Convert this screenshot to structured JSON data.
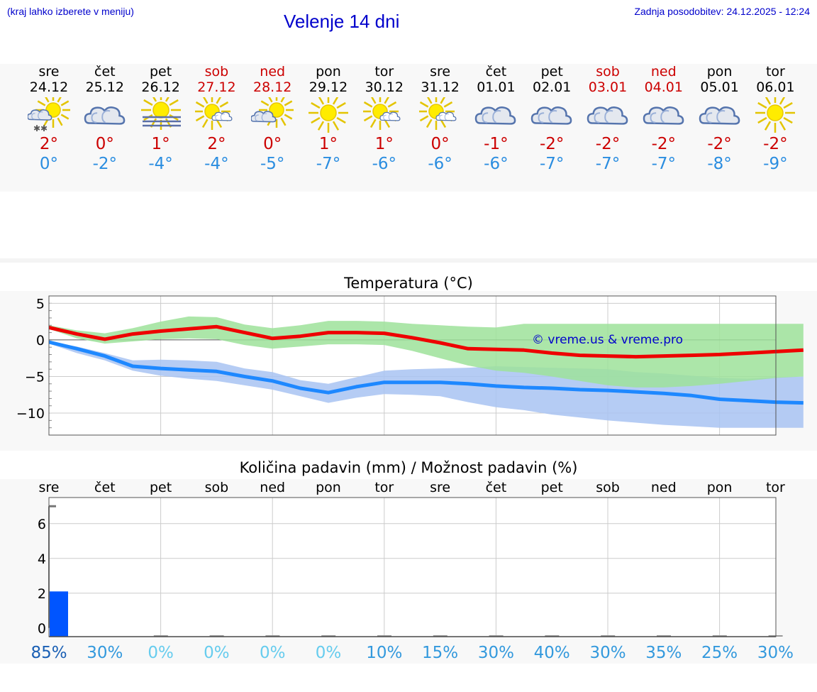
{
  "header": {
    "hint": "(kraj lahko izberete v meniju)",
    "title": "Velenje 14 dni",
    "updated": "Zadnja posodobitev: 24.12.2025 - 12:24"
  },
  "days": [
    {
      "name": "sre",
      "date": "24.12",
      "weekend": false,
      "icon": "partly-cloudy-snow-icon",
      "max": "2°",
      "min": "0°"
    },
    {
      "name": "čet",
      "date": "25.12",
      "weekend": false,
      "icon": "cloudy-icon",
      "max": "0°",
      "min": "-2°"
    },
    {
      "name": "pet",
      "date": "26.12",
      "weekend": false,
      "icon": "sun-fog-icon",
      "max": "1°",
      "min": "-4°"
    },
    {
      "name": "sob",
      "date": "27.12",
      "weekend": true,
      "icon": "sun-small-cloud-icon",
      "max": "2°",
      "min": "-4°"
    },
    {
      "name": "ned",
      "date": "28.12",
      "weekend": true,
      "icon": "sun-cloud-icon",
      "max": "0°",
      "min": "-5°"
    },
    {
      "name": "pon",
      "date": "29.12",
      "weekend": false,
      "icon": "sun-icon",
      "max": "1°",
      "min": "-7°"
    },
    {
      "name": "tor",
      "date": "30.12",
      "weekend": false,
      "icon": "sun-small-cloud-icon",
      "max": "1°",
      "min": "-6°"
    },
    {
      "name": "sre",
      "date": "31.12",
      "weekend": false,
      "icon": "sun-small-cloud-icon",
      "max": "0°",
      "min": "-6°"
    },
    {
      "name": "čet",
      "date": "01.01",
      "weekend": false,
      "icon": "cloudy-icon",
      "max": "-1°",
      "min": "-6°"
    },
    {
      "name": "pet",
      "date": "02.01",
      "weekend": false,
      "icon": "cloudy-icon",
      "max": "-2°",
      "min": "-7°"
    },
    {
      "name": "sob",
      "date": "03.01",
      "weekend": true,
      "icon": "cloudy-icon",
      "max": "-2°",
      "min": "-7°"
    },
    {
      "name": "ned",
      "date": "04.01",
      "weekend": true,
      "icon": "cloudy-icon",
      "max": "-2°",
      "min": "-7°"
    },
    {
      "name": "pon",
      "date": "05.01",
      "weekend": false,
      "icon": "cloudy-icon",
      "max": "-2°",
      "min": "-8°"
    },
    {
      "name": "tor",
      "date": "06.01",
      "weekend": false,
      "icon": "sun-icon",
      "max": "-2°",
      "min": "-9°"
    }
  ],
  "colors": {
    "max_line": "#ee0000",
    "min_line": "#1e88ff",
    "max_band": "#9de29a",
    "min_band": "#a8c3f2",
    "bar": "#0055ff",
    "title_blue": "#0000cc"
  },
  "chart_data": [
    {
      "type": "line",
      "title": "Temperatura (°C)",
      "watermark": "© vreme.us & vreme.pro",
      "x": [
        0,
        0.5,
        1,
        1.5,
        2,
        2.5,
        3,
        3.5,
        4,
        4.5,
        5,
        5.5,
        6,
        6.5,
        7,
        7.5,
        8,
        8.5,
        9,
        9.5,
        10,
        10.5,
        11,
        11.5,
        12,
        12.5,
        13,
        13.5
      ],
      "ylim": [
        -13,
        6
      ],
      "yticks": [
        5,
        0,
        -5,
        -10
      ],
      "ytick_labels": [
        "5",
        "0",
        "−5",
        "−10"
      ],
      "series": [
        {
          "name": "max",
          "values": [
            1.7,
            0.8,
            0.1,
            0.8,
            1.2,
            1.5,
            1.8,
            1.0,
            0.2,
            0.5,
            1.0,
            1.0,
            0.9,
            0.3,
            -0.4,
            -1.2,
            -1.3,
            -1.4,
            -1.8,
            -2.1,
            -2.2,
            -2.3,
            -2.2,
            -2.1,
            -2.0,
            -1.8,
            -1.6,
            -1.4
          ]
        },
        {
          "name": "max_band_high",
          "values": [
            2.0,
            1.3,
            0.9,
            1.6,
            2.5,
            3.2,
            3.1,
            2.1,
            1.6,
            2.0,
            2.6,
            2.6,
            2.5,
            2.2,
            2.0,
            1.8,
            1.7,
            2.2,
            2.2,
            2.2,
            2.2,
            2.2,
            2.2,
            2.2,
            2.2,
            2.2,
            2.2,
            2.2
          ]
        },
        {
          "name": "max_band_low",
          "values": [
            1.5,
            0.2,
            -0.5,
            -0.2,
            0.1,
            0.2,
            0.1,
            -0.7,
            -1.2,
            -0.9,
            -0.6,
            -0.6,
            -0.7,
            -1.5,
            -2.5,
            -3.5,
            -4.2,
            -4.5,
            -5.0,
            -5.6,
            -6.2,
            -6.5,
            -6.5,
            -6.3,
            -6.0,
            -5.6,
            -5.2,
            -5.0
          ]
        },
        {
          "name": "min",
          "values": [
            -0.3,
            -1.2,
            -2.2,
            -3.6,
            -3.9,
            -4.1,
            -4.3,
            -5.0,
            -5.6,
            -6.6,
            -7.2,
            -6.4,
            -5.8,
            -5.8,
            -5.8,
            -6.0,
            -6.3,
            -6.5,
            -6.6,
            -6.8,
            -6.9,
            -7.1,
            -7.3,
            -7.6,
            -8.1,
            -8.3,
            -8.5,
            -8.6
          ]
        },
        {
          "name": "min_band_high",
          "values": [
            -0.2,
            -0.9,
            -1.8,
            -2.8,
            -2.7,
            -2.8,
            -3.0,
            -3.9,
            -4.4,
            -5.5,
            -6.0,
            -5.1,
            -4.2,
            -4.0,
            -3.9,
            -3.8,
            -3.6,
            -3.7,
            -3.8,
            -3.9,
            -4.0,
            -4.4,
            -4.6,
            -4.9,
            -5.2,
            -5.3,
            -5.1,
            -5.0
          ]
        },
        {
          "name": "min_band_low",
          "values": [
            -0.5,
            -1.8,
            -2.8,
            -4.2,
            -4.9,
            -5.3,
            -5.6,
            -6.2,
            -6.8,
            -7.7,
            -8.6,
            -7.9,
            -7.4,
            -7.5,
            -7.7,
            -8.5,
            -9.2,
            -9.6,
            -10.2,
            -10.6,
            -11.0,
            -11.3,
            -11.6,
            -11.8,
            -12.0,
            -12.0,
            -12.0,
            -12.0
          ]
        }
      ]
    },
    {
      "type": "bar",
      "title": "Količina padavin (mm) / Možnost padavin (%)",
      "categories": [
        "sre",
        "čet",
        "pet",
        "sob",
        "ned",
        "pon",
        "tor",
        "sre",
        "čet",
        "pet",
        "sob",
        "ned",
        "pon",
        "tor"
      ],
      "values": [
        2.1,
        0,
        0,
        0,
        0,
        0,
        0,
        0,
        0,
        0,
        0,
        0,
        0,
        0
      ],
      "max_marker": 7.0,
      "ylim": [
        -0.5,
        7.5
      ],
      "yticks": [
        0,
        2,
        4,
        6
      ],
      "ytick_labels": [
        "0",
        "2",
        "4",
        "6"
      ],
      "probability": [
        "85%",
        "30%",
        "0%",
        "0%",
        "0%",
        "0%",
        "10%",
        "15%",
        "30%",
        "40%",
        "30%",
        "35%",
        "25%",
        "30%"
      ],
      "probability_colors": [
        "#1a5fb4",
        "#3399dd",
        "#66ccee",
        "#66ccee",
        "#66ccee",
        "#66ccee",
        "#3399dd",
        "#3399dd",
        "#3399dd",
        "#3399dd",
        "#3399dd",
        "#3399dd",
        "#3399dd",
        "#3399dd"
      ]
    }
  ]
}
